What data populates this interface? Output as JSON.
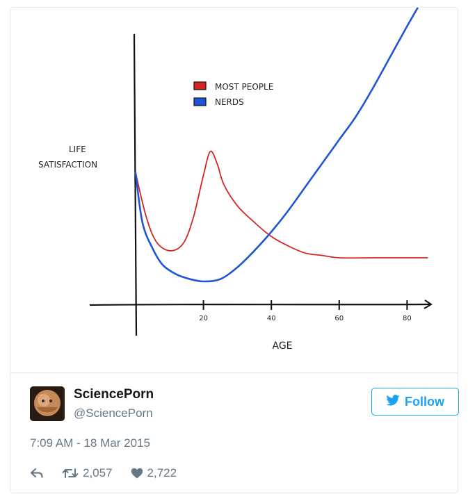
{
  "chart": {
    "legend": [
      {
        "label": "MOST PEOPLE",
        "color": "#d42525"
      },
      {
        "label": "NERDS",
        "color": "#1f55d4"
      }
    ],
    "ylabel_line1": "LIFE",
    "ylabel_line2": "SATISFACTION",
    "xlabel": "AGE",
    "ticks": [
      "20",
      "40",
      "60",
      "80"
    ]
  },
  "chart_data": {
    "type": "line",
    "title": "",
    "xlabel": "AGE",
    "ylabel": "LIFE SATISFACTION",
    "xlim": [
      0,
      85
    ],
    "xticks": [
      20,
      40,
      60,
      80
    ],
    "legend_position": "top-center",
    "series": [
      {
        "name": "MOST PEOPLE",
        "color": "#d42525",
        "x": [
          0,
          3,
          6,
          10,
          14,
          17,
          20,
          22,
          24,
          26,
          30,
          35,
          40,
          45,
          50,
          55,
          60,
          70,
          80,
          86
        ],
        "y": [
          0.56,
          0.38,
          0.27,
          0.23,
          0.26,
          0.37,
          0.55,
          0.65,
          0.6,
          0.51,
          0.42,
          0.35,
          0.29,
          0.25,
          0.22,
          0.21,
          0.2,
          0.2,
          0.2,
          0.2
        ]
      },
      {
        "name": "NERDS",
        "color": "#1f55d4",
        "x": [
          0,
          2,
          5,
          8,
          12,
          16,
          20,
          25,
          30,
          35,
          40,
          45,
          50,
          55,
          60,
          65,
          70,
          75,
          80,
          84
        ],
        "y": [
          0.56,
          0.35,
          0.24,
          0.17,
          0.13,
          0.11,
          0.1,
          0.11,
          0.16,
          0.23,
          0.31,
          0.4,
          0.5,
          0.6,
          0.7,
          0.8,
          0.92,
          1.05,
          1.18,
          1.28
        ]
      }
    ]
  },
  "tweet": {
    "name": "SciencePorn",
    "handle": "@SciencePorn",
    "follow_label": "Follow",
    "timestamp": "7:09 AM - 18 Mar 2015",
    "retweets": "2,057",
    "likes": "2,722"
  },
  "colors": {
    "twitter_blue": "#1da1f2",
    "meta_gray": "#657786"
  }
}
